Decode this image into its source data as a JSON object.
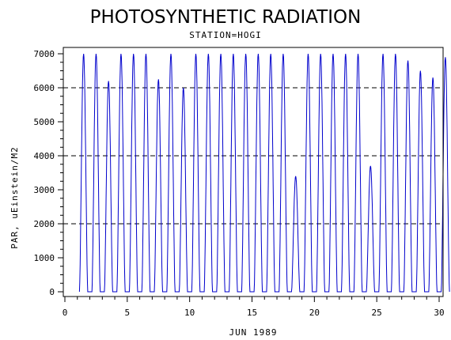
{
  "chart_data": {
    "type": "line",
    "title": "PHOTOSYNTHETIC RADIATION",
    "subtitle": "STATION=HOGI",
    "xlabel": "JUN 1989",
    "ylabel": "PAR, uEinstein/M2",
    "xlim": [
      0,
      30
    ],
    "ylim": [
      0,
      7000
    ],
    "x_ticks": [
      0,
      5,
      10,
      15,
      20,
      25,
      30
    ],
    "y_ticks": [
      0,
      1000,
      2000,
      3000,
      4000,
      5000,
      6000,
      7000
    ],
    "reference_lines_y": [
      2000,
      4000,
      6000
    ],
    "line_color": "#0000cc",
    "series": [
      {
        "daily_peaks": [
          {
            "day": 1,
            "peak": 7000
          },
          {
            "day": 2,
            "peak": 7000
          },
          {
            "day": 3,
            "peak": 6200
          },
          {
            "day": 4,
            "peak": 7000
          },
          {
            "day": 5,
            "peak": 7000
          },
          {
            "day": 6,
            "peak": 7000
          },
          {
            "day": 7,
            "peak": 6250
          },
          {
            "day": 8,
            "peak": 7000
          },
          {
            "day": 9,
            "peak": 6000
          },
          {
            "day": 10,
            "peak": 7000
          },
          {
            "day": 11,
            "peak": 7000
          },
          {
            "day": 12,
            "peak": 7000
          },
          {
            "day": 13,
            "peak": 7000
          },
          {
            "day": 14,
            "peak": 7000
          },
          {
            "day": 15,
            "peak": 7000
          },
          {
            "day": 16,
            "peak": 7000
          },
          {
            "day": 17,
            "peak": 7000
          },
          {
            "day": 18,
            "peak": 3400
          },
          {
            "day": 19,
            "peak": 7000
          },
          {
            "day": 20,
            "peak": 7000
          },
          {
            "day": 21,
            "peak": 7000
          },
          {
            "day": 22,
            "peak": 7000
          },
          {
            "day": 23,
            "peak": 7000
          },
          {
            "day": 24,
            "peak": 3700
          },
          {
            "day": 25,
            "peak": 7000
          },
          {
            "day": 26,
            "peak": 7000
          },
          {
            "day": 27,
            "peak": 6800
          },
          {
            "day": 28,
            "peak": 6500
          },
          {
            "day": 29,
            "peak": 6300
          },
          {
            "day": 30,
            "peak": 6900
          }
        ]
      }
    ]
  }
}
